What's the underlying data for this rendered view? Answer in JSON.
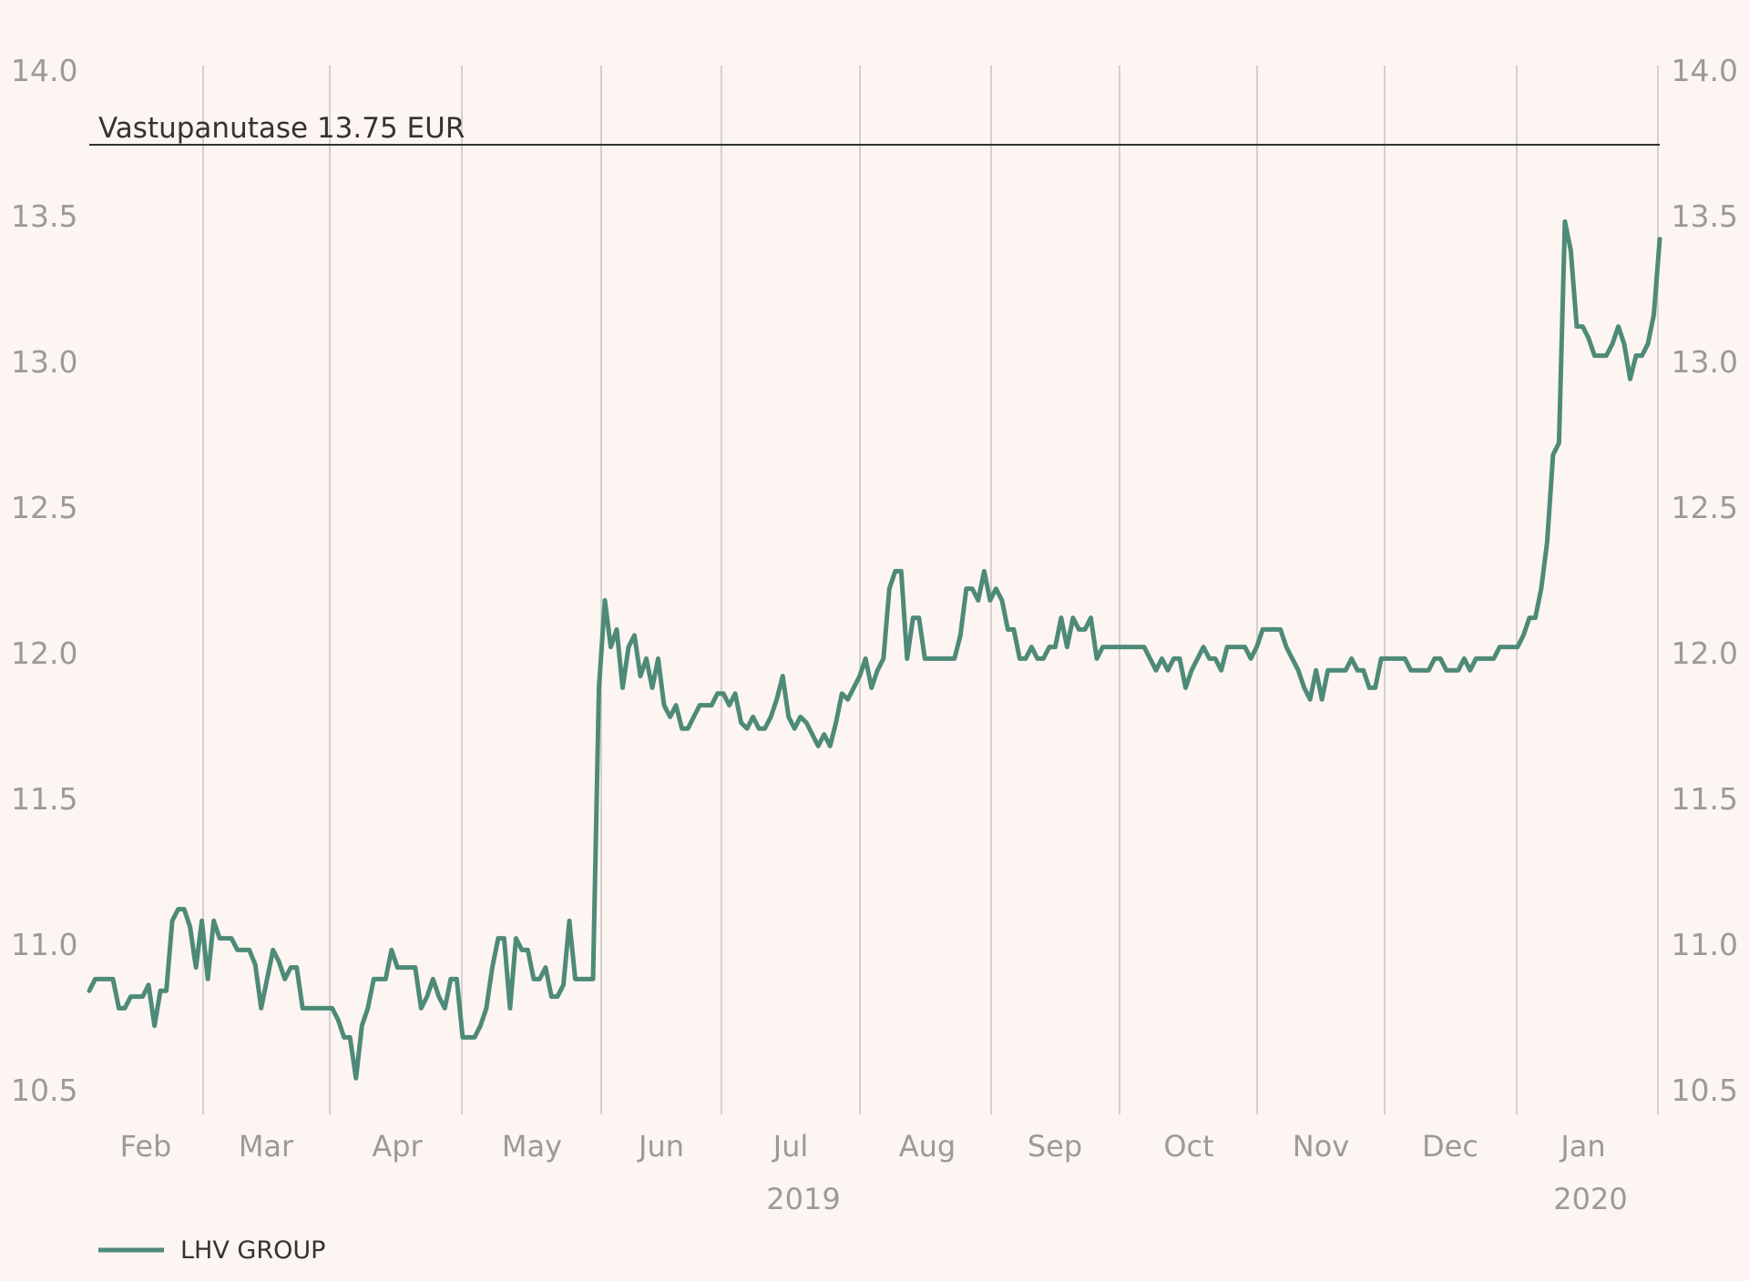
{
  "chart_data": {
    "type": "line",
    "title": "",
    "xlabel": "",
    "ylabel": "",
    "ylim": [
      10.5,
      14.0
    ],
    "y_ticks": [
      "10.5",
      "11.0",
      "11.5",
      "12.0",
      "12.5",
      "13.0",
      "13.5",
      "14.0"
    ],
    "y_axis_sides": [
      "left",
      "right"
    ],
    "grid": "vertical month separators",
    "months": [
      "Feb",
      "Mar",
      "Apr",
      "May",
      "Jun",
      "Jul",
      "Aug",
      "Sep",
      "Oct",
      "Nov",
      "Dec",
      "Jan"
    ],
    "years": [
      {
        "label": "2019",
        "under_month": "Jul"
      },
      {
        "label": "2020",
        "under_month": "Jan"
      }
    ],
    "reference_line": {
      "label": "Vastupanutase 13.75 EUR",
      "value": 13.75
    },
    "legend": {
      "position": "bottom-left",
      "entries": [
        "LHV GROUP"
      ]
    },
    "line_color": "#4e8a78",
    "series": [
      {
        "name": "LHV GROUP",
        "x_start": "2019-01-23",
        "x_end": "2020-01-24",
        "values": [
          10.84,
          10.88,
          10.88,
          10.88,
          10.88,
          10.78,
          10.78,
          10.82,
          10.82,
          10.82,
          10.86,
          10.72,
          10.84,
          10.84,
          11.08,
          11.12,
          11.12,
          11.06,
          10.92,
          11.08,
          10.88,
          11.08,
          11.02,
          11.02,
          11.02,
          10.98,
          10.98,
          10.98,
          10.93,
          10.78,
          10.88,
          10.98,
          10.94,
          10.88,
          10.92,
          10.92,
          10.78,
          10.78,
          10.78,
          10.78,
          10.78,
          10.78,
          10.74,
          10.68,
          10.68,
          10.54,
          10.72,
          10.78,
          10.88,
          10.88,
          10.88,
          10.98,
          10.92,
          10.92,
          10.92,
          10.92,
          10.78,
          10.82,
          10.88,
          10.82,
          10.78,
          10.88,
          10.88,
          10.68,
          10.68,
          10.68,
          10.72,
          10.78,
          10.92,
          11.02,
          11.02,
          10.78,
          11.02,
          10.98,
          10.98,
          10.88,
          10.88,
          10.92,
          10.82,
          10.82,
          10.86,
          11.08,
          10.88,
          10.88,
          10.88,
          10.88,
          11.88,
          12.18,
          12.02,
          12.08,
          11.88,
          12.02,
          12.06,
          11.92,
          11.98,
          11.88,
          11.98,
          11.82,
          11.78,
          11.82,
          11.74,
          11.74,
          11.78,
          11.82,
          11.82,
          11.82,
          11.86,
          11.86,
          11.82,
          11.86,
          11.76,
          11.74,
          11.78,
          11.74,
          11.74,
          11.78,
          11.84,
          11.92,
          11.78,
          11.74,
          11.78,
          11.76,
          11.72,
          11.68,
          11.72,
          11.68,
          11.76,
          11.86,
          11.84,
          11.88,
          11.92,
          11.98,
          11.88,
          11.94,
          11.98,
          12.22,
          12.28,
          12.28,
          11.98,
          12.12,
          12.12,
          11.98,
          11.98,
          11.98,
          11.98,
          11.98,
          11.98,
          12.06,
          12.22,
          12.22,
          12.18,
          12.28,
          12.18,
          12.22,
          12.18,
          12.08,
          12.08,
          11.98,
          11.98,
          12.02,
          11.98,
          11.98,
          12.02,
          12.02,
          12.12,
          12.02,
          12.12,
          12.08,
          12.08,
          12.12,
          11.98,
          12.02,
          12.02,
          12.02,
          12.02,
          12.02,
          12.02,
          12.02,
          12.02,
          11.98,
          11.94,
          11.98,
          11.94,
          11.98,
          11.98,
          11.88,
          11.94,
          11.98,
          12.02,
          11.98,
          11.98,
          11.94,
          12.02,
          12.02,
          12.02,
          12.02,
          11.98,
          12.02,
          12.08,
          12.08,
          12.08,
          12.08,
          12.02,
          11.98,
          11.94,
          11.88,
          11.84,
          11.94,
          11.84,
          11.94,
          11.94,
          11.94,
          11.94,
          11.98,
          11.94,
          11.94,
          11.88,
          11.88,
          11.98,
          11.98,
          11.98,
          11.98,
          11.98,
          11.94,
          11.94,
          11.94,
          11.94,
          11.98,
          11.98,
          11.94,
          11.94,
          11.94,
          11.98,
          11.94,
          11.98,
          11.98,
          11.98,
          11.98,
          12.02,
          12.02,
          12.02,
          12.02,
          12.06,
          12.12,
          12.12,
          12.22,
          12.38,
          12.68,
          12.72,
          13.48,
          13.38,
          13.12,
          13.12,
          13.08,
          13.02,
          13.02,
          13.02,
          13.06,
          13.12,
          13.06,
          12.94,
          13.02,
          13.02,
          13.06,
          13.16,
          13.42
        ]
      }
    ]
  }
}
